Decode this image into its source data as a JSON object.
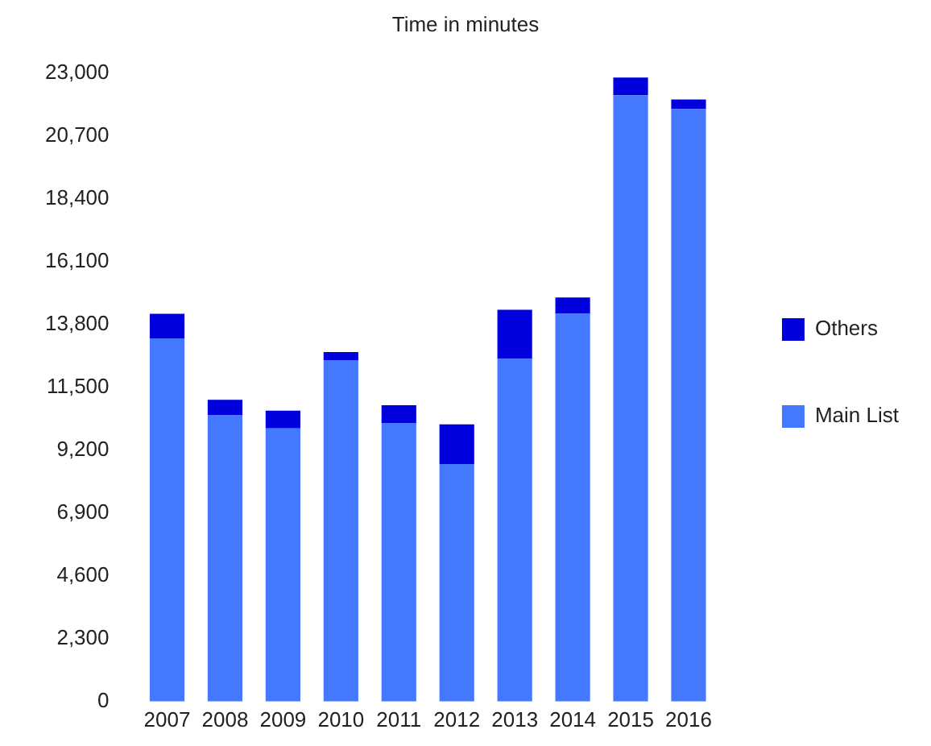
{
  "chart_data": {
    "type": "bar",
    "title": "Time in minutes",
    "stacked": true,
    "categories": [
      "2007",
      "2008",
      "2009",
      "2010",
      "2011",
      "2012",
      "2013",
      "2014",
      "2015",
      "2016"
    ],
    "series": [
      {
        "name": "Main List",
        "color": "#4378ff",
        "values": [
          13300,
          10500,
          10000,
          12500,
          10200,
          8700,
          12550,
          14200,
          22200,
          21700
        ]
      },
      {
        "name": "Others",
        "color": "#0000dd",
        "values": [
          900,
          550,
          650,
          300,
          650,
          1450,
          1800,
          600,
          650,
          350
        ]
      }
    ],
    "ylim": [
      0,
      23000
    ],
    "yticks": [
      0,
      {
        "value": 2300,
        "label": "2,300"
      },
      {
        "value": 4600,
        "label": "4,600"
      },
      {
        "value": 6900,
        "label": "6,900"
      },
      {
        "value": 9200,
        "label": "9,200"
      },
      {
        "value": 11500,
        "label": "11,500"
      },
      {
        "value": 13800,
        "label": "13,800"
      },
      {
        "value": 16100,
        "label": "16,100"
      },
      {
        "value": 18400,
        "label": "18,400"
      },
      {
        "value": 20700,
        "label": "20,700"
      },
      {
        "value": 23000,
        "label": "23,000"
      }
    ],
    "grid": false,
    "legend": "right"
  }
}
